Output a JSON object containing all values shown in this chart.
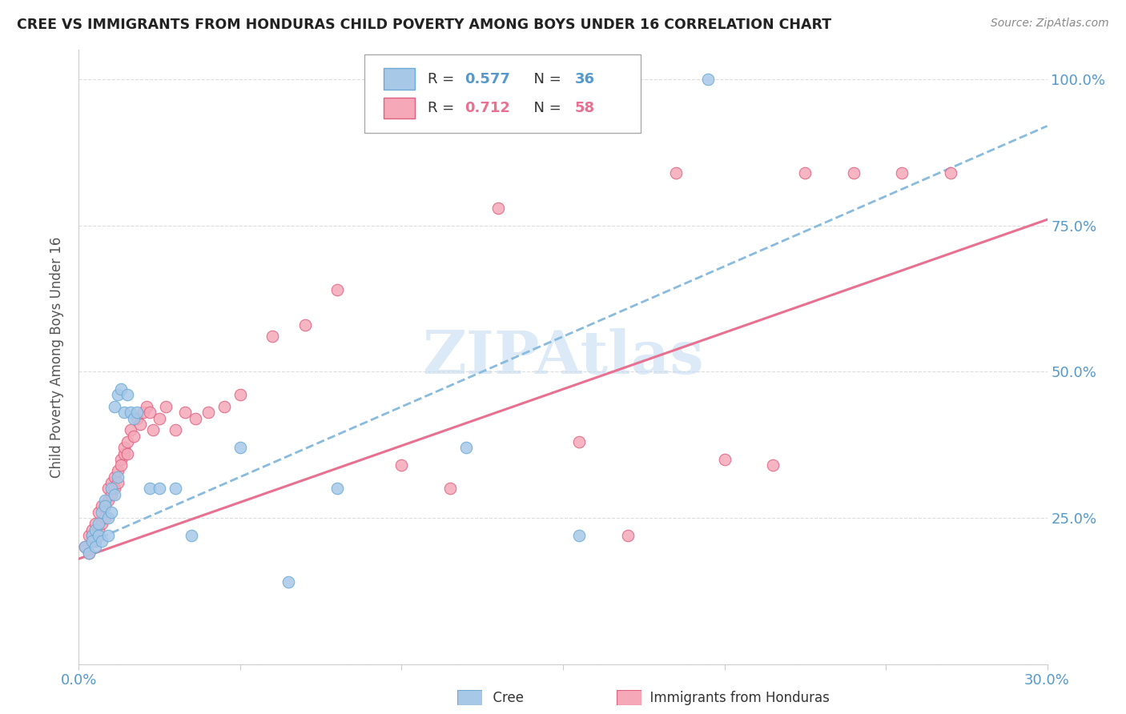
{
  "title": "CREE VS IMMIGRANTS FROM HONDURAS CHILD POVERTY AMONG BOYS UNDER 16 CORRELATION CHART",
  "source": "Source: ZipAtlas.com",
  "ylabel": "Child Poverty Among Boys Under 16",
  "xmin": 0.0,
  "xmax": 0.3,
  "ymin": 0.0,
  "ymax": 1.05,
  "yticks": [
    0.0,
    0.25,
    0.5,
    0.75,
    1.0
  ],
  "ytick_labels": [
    "",
    "25.0%",
    "50.0%",
    "75.0%",
    "100.0%"
  ],
  "xticks": [
    0.0,
    0.05,
    0.1,
    0.15,
    0.2,
    0.25,
    0.3
  ],
  "xtick_labels": [
    "0.0%",
    "",
    "",
    "",
    "",
    "",
    "30.0%"
  ],
  "cree_color": "#a8c8e8",
  "honduras_color": "#f4a8b8",
  "cree_edge_color": "#6aaad4",
  "honduras_edge_color": "#e06080",
  "cree_line_color": "#88bbdd",
  "honduras_line_color": "#e87090",
  "R_cree": 0.577,
  "N_cree": 36,
  "R_honduras": 0.712,
  "N_honduras": 58,
  "watermark": "ZIPAtlas",
  "tick_color": "#5599cc",
  "grid_color": "#dddddd",
  "cree_x": [
    0.002,
    0.003,
    0.004,
    0.004,
    0.005,
    0.005,
    0.006,
    0.006,
    0.007,
    0.007,
    0.008,
    0.008,
    0.009,
    0.009,
    0.01,
    0.01,
    0.011,
    0.011,
    0.012,
    0.012,
    0.013,
    0.014,
    0.015,
    0.016,
    0.017,
    0.018,
    0.022,
    0.025,
    0.03,
    0.035,
    0.05,
    0.065,
    0.08,
    0.12,
    0.155,
    0.195
  ],
  "cree_y": [
    0.2,
    0.19,
    0.22,
    0.21,
    0.23,
    0.2,
    0.22,
    0.24,
    0.26,
    0.21,
    0.28,
    0.27,
    0.22,
    0.25,
    0.3,
    0.26,
    0.29,
    0.44,
    0.46,
    0.32,
    0.47,
    0.43,
    0.46,
    0.43,
    0.42,
    0.43,
    0.3,
    0.3,
    0.3,
    0.22,
    0.37,
    0.14,
    0.3,
    0.37,
    0.22,
    1.0
  ],
  "honduras_x": [
    0.002,
    0.003,
    0.003,
    0.004,
    0.004,
    0.005,
    0.005,
    0.006,
    0.006,
    0.007,
    0.007,
    0.008,
    0.008,
    0.009,
    0.009,
    0.01,
    0.01,
    0.011,
    0.011,
    0.012,
    0.012,
    0.013,
    0.013,
    0.014,
    0.014,
    0.015,
    0.015,
    0.016,
    0.017,
    0.018,
    0.019,
    0.02,
    0.021,
    0.022,
    0.023,
    0.025,
    0.027,
    0.03,
    0.033,
    0.036,
    0.04,
    0.045,
    0.05,
    0.06,
    0.07,
    0.08,
    0.1,
    0.115,
    0.13,
    0.155,
    0.17,
    0.185,
    0.2,
    0.215,
    0.225,
    0.24,
    0.255,
    0.27
  ],
  "honduras_y": [
    0.2,
    0.22,
    0.19,
    0.22,
    0.23,
    0.21,
    0.24,
    0.23,
    0.26,
    0.24,
    0.27,
    0.25,
    0.27,
    0.28,
    0.3,
    0.29,
    0.31,
    0.3,
    0.32,
    0.31,
    0.33,
    0.35,
    0.34,
    0.36,
    0.37,
    0.38,
    0.36,
    0.4,
    0.39,
    0.42,
    0.41,
    0.43,
    0.44,
    0.43,
    0.4,
    0.42,
    0.44,
    0.4,
    0.43,
    0.42,
    0.43,
    0.44,
    0.46,
    0.56,
    0.58,
    0.64,
    0.34,
    0.3,
    0.78,
    0.38,
    0.22,
    0.84,
    0.35,
    0.34,
    0.84,
    0.84,
    0.84,
    0.84
  ],
  "cree_trendline_x0": 0.0,
  "cree_trendline_y0": 0.2,
  "cree_trendline_x1": 0.3,
  "cree_trendline_y1": 0.92,
  "honduras_trendline_x0": 0.0,
  "honduras_trendline_y0": 0.18,
  "honduras_trendline_x1": 0.3,
  "honduras_trendline_y1": 0.76
}
